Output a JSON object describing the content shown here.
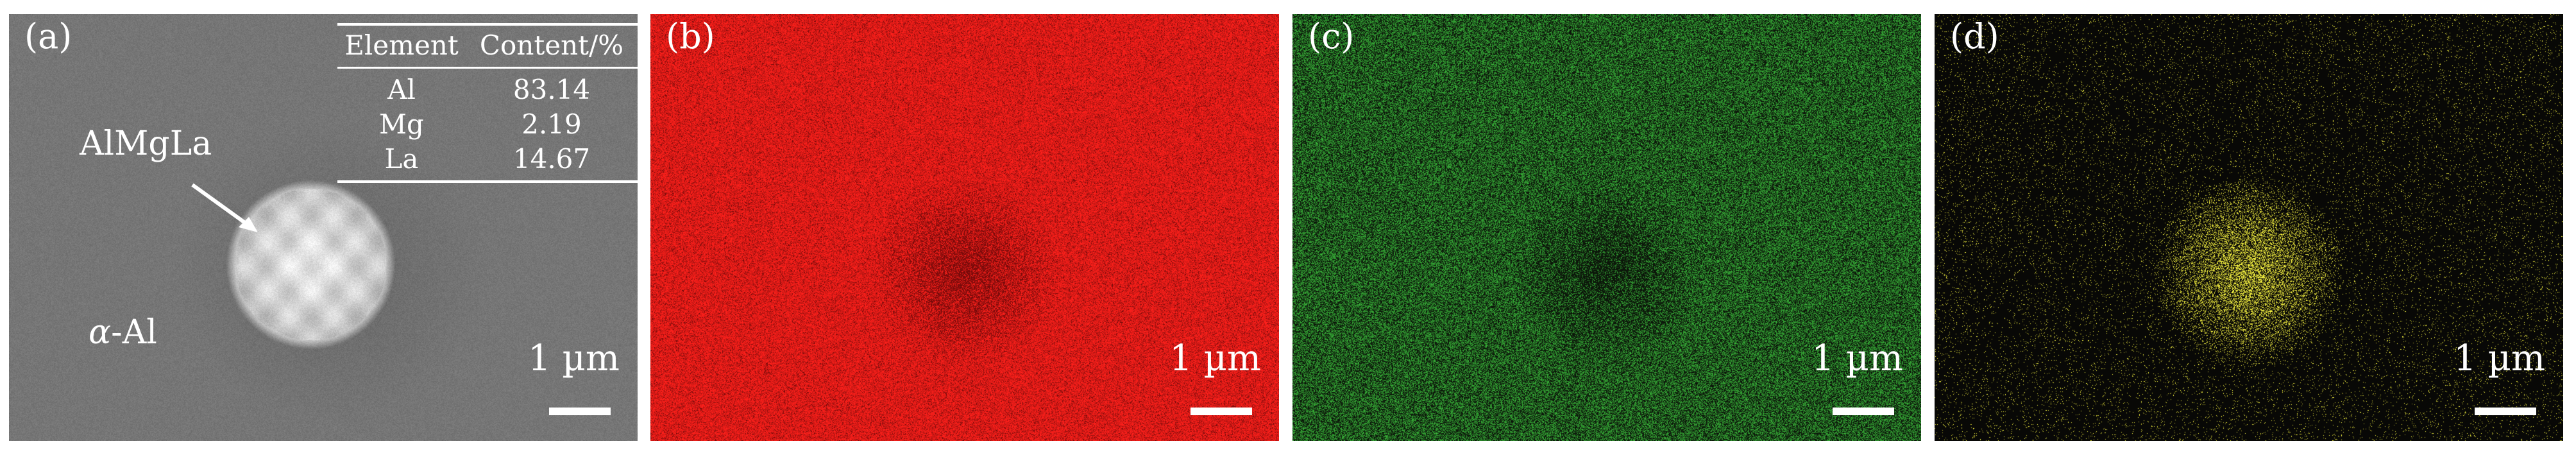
{
  "panels": {
    "a": {
      "label": "(a)",
      "scale": "1 µm"
    },
    "b": {
      "label": "(b)",
      "scale": "1 µm"
    },
    "c": {
      "label": "(c)",
      "scale": "1 µm"
    },
    "d": {
      "label": "(d)",
      "scale": "1 µm"
    }
  },
  "phase_labels": {
    "particle": "AlMgLa",
    "matrix_symbol": "α",
    "matrix_suffix": "-Al"
  },
  "composition_table": {
    "headers": [
      "Element",
      "Content/%"
    ],
    "rows": [
      {
        "element": "Al",
        "content": "83.14"
      },
      {
        "element": "Mg",
        "content": "2.19"
      },
      {
        "element": "La",
        "content": "14.67"
      }
    ]
  },
  "colors": {
    "sem_background": "#7a7a7a",
    "al_map": "#d61b18",
    "mg_map": "#2b8a2b",
    "la_map": "#e6e03a"
  }
}
